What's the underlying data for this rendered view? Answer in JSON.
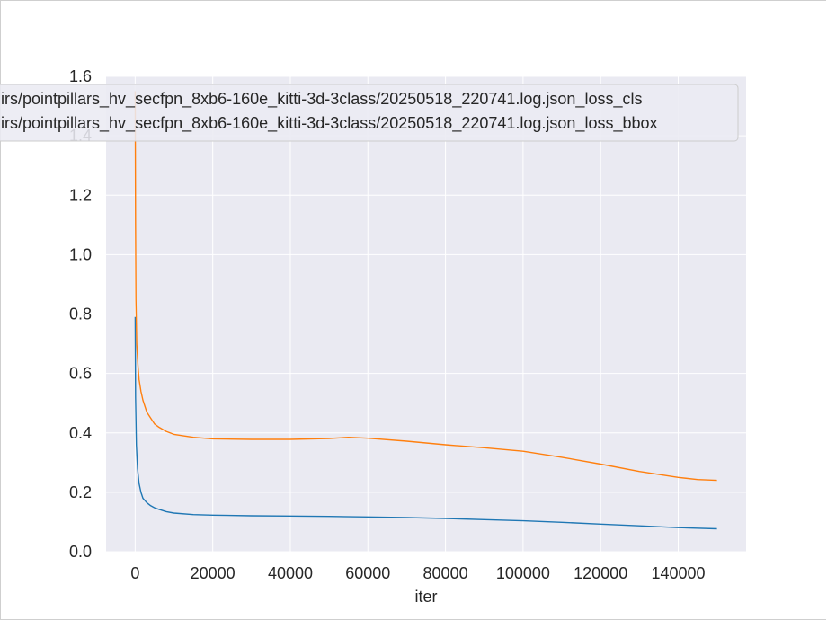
{
  "chart_data": {
    "type": "line",
    "title": "",
    "xlabel": "iter",
    "ylabel": "",
    "xlim": [
      -7500,
      157500
    ],
    "ylim": [
      0,
      1.6
    ],
    "xticks": [
      0,
      20000,
      40000,
      60000,
      80000,
      100000,
      120000,
      140000
    ],
    "xtick_labels": [
      "0",
      "20000",
      "40000",
      "60000",
      "80000",
      "100000",
      "120000",
      "140000"
    ],
    "yticks": [
      0.0,
      0.2,
      0.4,
      0.6,
      0.8,
      1.0,
      1.2,
      1.4,
      1.6
    ],
    "ytick_labels": [
      "0.0",
      "0.2",
      "0.4",
      "0.6",
      "0.8",
      "1.0",
      "1.2",
      "1.4",
      "1.6"
    ],
    "grid": true,
    "background_color": "#eaeaf2",
    "legend_position": "top-left",
    "series": [
      {
        "name": "irs/pointpillars_hv_secfpn_8xb6-160e_kitti-3d-3class/20250518_220741.log.json_loss_cls",
        "color": "#1f77b4",
        "x": [
          0,
          100,
          300,
          600,
          1000,
          1500,
          2000,
          3000,
          4000,
          5000,
          6000,
          8000,
          10000,
          15000,
          20000,
          30000,
          40000,
          50000,
          60000,
          70000,
          80000,
          90000,
          100000,
          110000,
          120000,
          130000,
          140000,
          150000
        ],
        "y": [
          0.79,
          0.52,
          0.36,
          0.28,
          0.23,
          0.2,
          0.18,
          0.165,
          0.155,
          0.148,
          0.143,
          0.135,
          0.13,
          0.125,
          0.123,
          0.121,
          0.12,
          0.119,
          0.117,
          0.115,
          0.112,
          0.108,
          0.104,
          0.099,
          0.093,
          0.087,
          0.081,
          0.077
        ]
      },
      {
        "name": "irs/pointpillars_hv_secfpn_8xb6-160e_kitti-3d-3class/20250518_220741.log.json_loss_bbox",
        "color": "#ff7f0e",
        "x": [
          0,
          100,
          200,
          400,
          700,
          1000,
          1500,
          2000,
          3000,
          4000,
          5000,
          6000,
          8000,
          10000,
          15000,
          20000,
          30000,
          40000,
          50000,
          55000,
          60000,
          70000,
          80000,
          90000,
          100000,
          110000,
          120000,
          130000,
          140000,
          145000,
          150000
        ],
        "y": [
          1.55,
          1.1,
          0.85,
          0.7,
          0.63,
          0.58,
          0.54,
          0.51,
          0.47,
          0.45,
          0.43,
          0.42,
          0.405,
          0.395,
          0.385,
          0.38,
          0.378,
          0.378,
          0.381,
          0.385,
          0.382,
          0.372,
          0.36,
          0.35,
          0.338,
          0.318,
          0.295,
          0.27,
          0.25,
          0.243,
          0.24
        ]
      }
    ]
  }
}
